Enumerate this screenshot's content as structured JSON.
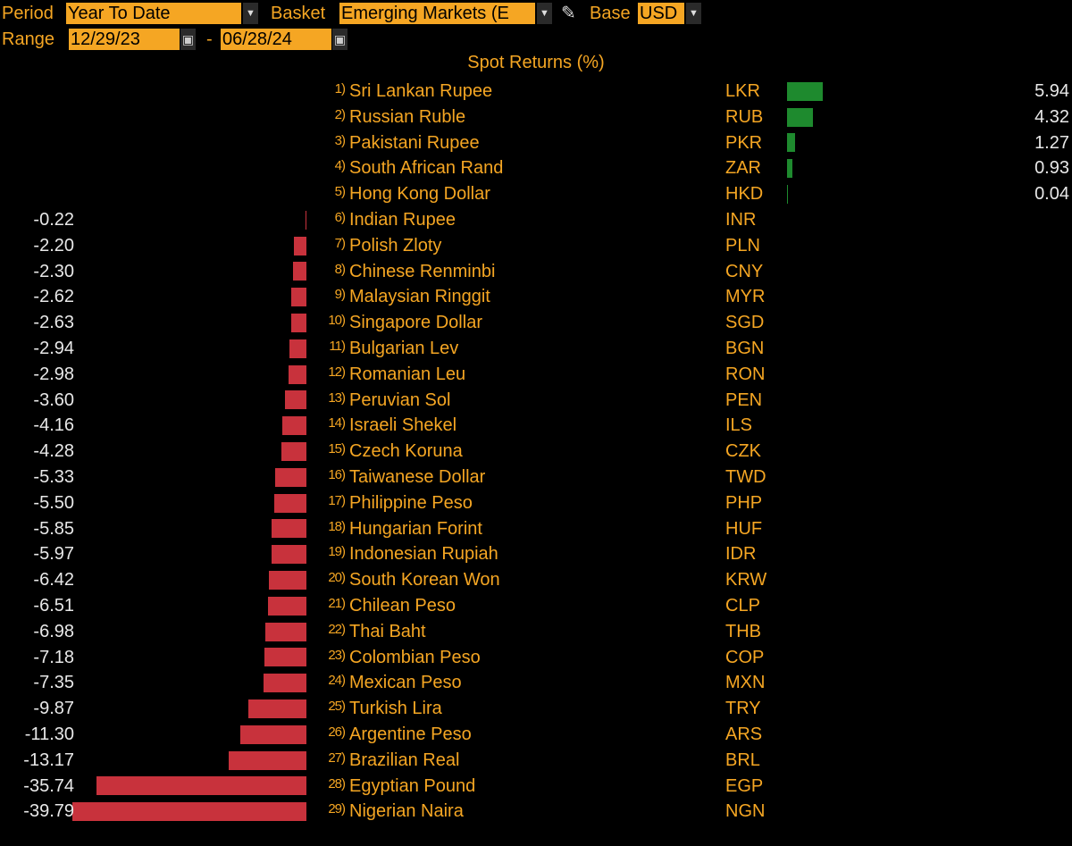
{
  "controls": {
    "period_label": "Period",
    "period_value": "Year To Date",
    "basket_label": "Basket",
    "basket_value": "Emerging Markets (E",
    "base_label": "Base",
    "base_value": "USD",
    "range_label": "Range",
    "range_start": "12/29/23",
    "range_sep": "-",
    "range_end": "06/28/24"
  },
  "chart_data": {
    "type": "bar",
    "title": "Spot Returns (%)",
    "categories": [
      "Sri Lankan Rupee",
      "Russian Ruble",
      "Pakistani Rupee",
      "South African Rand",
      "Hong Kong Dollar",
      "Indian Rupee",
      "Polish Zloty",
      "Chinese Renminbi",
      "Malaysian Ringgit",
      "Singapore Dollar",
      "Bulgarian Lev",
      "Romanian Leu",
      "Peruvian Sol",
      "Israeli Shekel",
      "Czech Koruna",
      "Taiwanese Dollar",
      "Philippine Peso",
      "Hungarian Forint",
      "Indonesian Rupiah",
      "South Korean Won",
      "Chilean Peso",
      "Thai Baht",
      "Colombian Peso",
      "Mexican Peso",
      "Turkish Lira",
      "Argentine Peso",
      "Brazilian Real",
      "Egyptian Pound",
      "Nigerian Naira"
    ],
    "codes": [
      "LKR",
      "RUB",
      "PKR",
      "ZAR",
      "HKD",
      "INR",
      "PLN",
      "CNY",
      "MYR",
      "SGD",
      "BGN",
      "RON",
      "PEN",
      "ILS",
      "CZK",
      "TWD",
      "PHP",
      "HUF",
      "IDR",
      "KRW",
      "CLP",
      "THB",
      "COP",
      "MXN",
      "TRY",
      "ARS",
      "BRL",
      "EGP",
      "NGN"
    ],
    "values": [
      5.94,
      4.32,
      1.27,
      0.93,
      0.04,
      -0.22,
      -2.2,
      -2.3,
      -2.62,
      -2.63,
      -2.94,
      -2.98,
      -3.6,
      -4.16,
      -4.28,
      -5.33,
      -5.5,
      -5.85,
      -5.97,
      -6.42,
      -6.51,
      -6.98,
      -7.18,
      -7.35,
      -9.87,
      -11.3,
      -13.17,
      -35.74,
      -39.79
    ],
    "value_labels": [
      "5.94",
      "4.32",
      "1.27",
      "0.93",
      "0.04",
      "-0.22",
      "-2.20",
      "-2.30",
      "-2.62",
      "-2.63",
      "-2.94",
      "-2.98",
      "-3.60",
      "-4.16",
      "-4.28",
      "-5.33",
      "-5.50",
      "-5.85",
      "-5.97",
      "-6.42",
      "-6.51",
      "-6.98",
      "-7.18",
      "-7.35",
      "-9.87",
      "-11.30",
      "-13.17",
      "-35.74",
      "-39.79"
    ],
    "colors": {
      "positive": "#1e8a2e",
      "negative": "#c8323c"
    },
    "grid": false
  }
}
